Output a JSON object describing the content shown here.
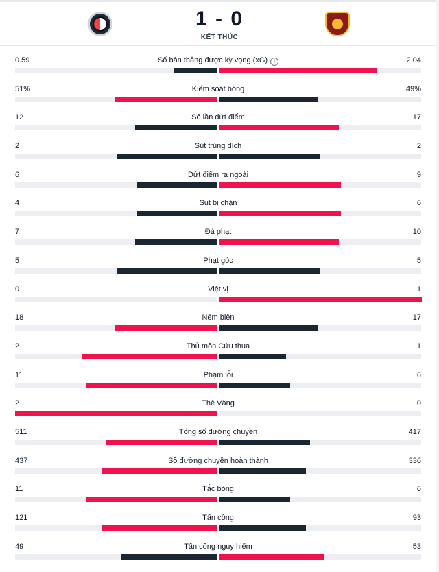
{
  "match": {
    "score": "1 - 0",
    "status": "KẾT THÚC",
    "home_crest": "feyenoord-crest-icon",
    "away_crest": "roma-crest-icon"
  },
  "colors": {
    "win": "#f0124d",
    "lose": "#1a2733",
    "track": "#eceef1"
  },
  "stats": [
    {
      "label": "Số bàn thắng được kỳ vọng (xG)",
      "home": "0.59",
      "away": "2.04",
      "hf": 0.22,
      "af": 0.78,
      "info": true
    },
    {
      "label": "Kiểm soát bóng",
      "home": "51%",
      "away": "49%",
      "hf": 0.51,
      "af": 0.49
    },
    {
      "label": "Số lần dứt điểm",
      "home": "12",
      "away": "17",
      "hf": 0.41,
      "af": 0.59
    },
    {
      "label": "Sút trúng đích",
      "home": "2",
      "away": "2",
      "hf": 0.5,
      "af": 0.5
    },
    {
      "label": "Dứt điểm ra ngoài",
      "home": "6",
      "away": "9",
      "hf": 0.4,
      "af": 0.6
    },
    {
      "label": "Sút bị chặn",
      "home": "4",
      "away": "6",
      "hf": 0.4,
      "af": 0.6
    },
    {
      "label": "Đá phạt",
      "home": "7",
      "away": "10",
      "hf": 0.41,
      "af": 0.59
    },
    {
      "label": "Phạt góc",
      "home": "5",
      "away": "5",
      "hf": 0.5,
      "af": 0.5
    },
    {
      "label": "Việt vị",
      "home": "0",
      "away": "1",
      "hf": 0,
      "af": 1
    },
    {
      "label": "Ném biên",
      "home": "18",
      "away": "17",
      "hf": 0.51,
      "af": 0.49
    },
    {
      "label": "Thủ môn Cứu thua",
      "home": "2",
      "away": "1",
      "hf": 0.67,
      "af": 0.33
    },
    {
      "label": "Phạm lỗi",
      "home": "11",
      "away": "6",
      "hf": 0.65,
      "af": 0.35
    },
    {
      "label": "Thẻ Vàng",
      "home": "2",
      "away": "0",
      "hf": 1,
      "af": 0
    },
    {
      "label": "Tổng số đường chuyền",
      "home": "511",
      "away": "417",
      "hf": 0.55,
      "af": 0.45
    },
    {
      "label": "Số đường chuyền hoàn thành",
      "home": "437",
      "away": "336",
      "hf": 0.57,
      "af": 0.43
    },
    {
      "label": "Tắc bóng",
      "home": "11",
      "away": "6",
      "hf": 0.65,
      "af": 0.35
    },
    {
      "label": "Tấn công",
      "home": "121",
      "away": "93",
      "hf": 0.57,
      "af": 0.43
    },
    {
      "label": "Tấn công nguy hiểm",
      "home": "49",
      "away": "53",
      "hf": 0.48,
      "af": 0.52
    }
  ]
}
